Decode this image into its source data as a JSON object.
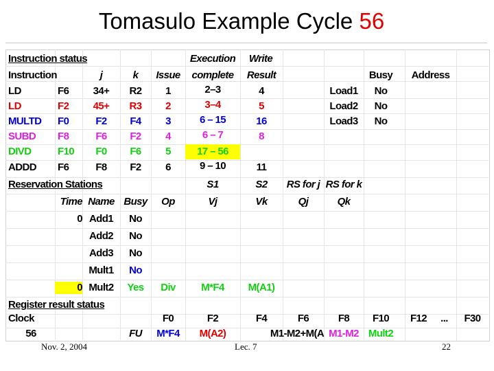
{
  "title": {
    "text": "Tomasulo Example Cycle ",
    "cycle": "56"
  },
  "colors": {
    "black": "#000000",
    "red": "#e00000",
    "blue": "#0000e0",
    "magenta": "#e020e0",
    "green": "#10d010",
    "highlight": "#ffff00"
  },
  "instr": {
    "section_label": "Instruction status",
    "headers": {
      "instruction": "Instruction",
      "j": "j",
      "k": "k",
      "issue": "Issue",
      "exec1": "Execution",
      "exec2": "complete",
      "write1": "Write",
      "write2": "Result"
    },
    "rows": [
      {
        "op": "LD",
        "dest": "F6",
        "j": "34+",
        "k": "R2",
        "issue": "1",
        "exec": "2–3",
        "write": "4",
        "color": "#000000"
      },
      {
        "op": "LD",
        "dest": "F2",
        "j": "45+",
        "k": "R3",
        "issue": "2",
        "exec": "3–4",
        "write": "5",
        "color": "#e00000"
      },
      {
        "op": "MULTD",
        "dest": "F0",
        "j": "F2",
        "k": "F4",
        "issue": "3",
        "exec": "6 – 15",
        "write": "16",
        "color": "#0000e0"
      },
      {
        "op": "SUBD",
        "dest": "F8",
        "j": "F6",
        "k": "F2",
        "issue": "4",
        "exec": "6 – 7",
        "write": "8",
        "color": "#e020e0"
      },
      {
        "op": "DIVD",
        "dest": "F10",
        "j": "F0",
        "k": "F6",
        "issue": "5",
        "exec": "17 – 56",
        "write": "",
        "color": "#10d010"
      },
      {
        "op": "ADDD",
        "dest": "F6",
        "j": "F8",
        "k": "F2",
        "issue": "6",
        "exec": "9 – 10",
        "write": "11",
        "color": "#000000"
      }
    ]
  },
  "load": {
    "headers": {
      "busy": "Busy",
      "address": "Address"
    },
    "rows": [
      {
        "name": "Load1",
        "busy": "No",
        "address": ""
      },
      {
        "name": "Load2",
        "busy": "No",
        "address": ""
      },
      {
        "name": "Load3",
        "busy": "No",
        "address": ""
      }
    ]
  },
  "rs": {
    "section_label": "Reservation Stations",
    "headers": {
      "s1": "S1",
      "s2": "S2",
      "rs_j": "RS for j",
      "rs_k": "RS for k",
      "time": "Time",
      "name": "Name",
      "busy": "Busy",
      "op": "Op",
      "vj": "Vj",
      "vk": "Vk",
      "qj": "Qj",
      "qk": "Qk"
    },
    "rows": [
      {
        "time": "0",
        "name": "Add1",
        "busy": "No",
        "op": "",
        "vj": "",
        "vk": "",
        "qj": "",
        "qk": "",
        "color": "#000000"
      },
      {
        "time": "",
        "name": "Add2",
        "busy": "No",
        "op": "",
        "vj": "",
        "vk": "",
        "qj": "",
        "qk": "",
        "color": "#000000"
      },
      {
        "time": "",
        "name": "Add3",
        "busy": "No",
        "op": "",
        "vj": "",
        "vk": "",
        "qj": "",
        "qk": "",
        "color": "#000000"
      },
      {
        "time": "",
        "name": "Mult1",
        "busy": "No",
        "op": "",
        "vj": "",
        "vk": "",
        "qj": "",
        "qk": "",
        "color": "#0000e0"
      },
      {
        "time": "0",
        "name": "Mult2",
        "busy": "Yes",
        "op": "Div",
        "vj": "M*F4",
        "vk": "M(A1)",
        "qj": "",
        "qk": "",
        "color": "#10d010"
      }
    ]
  },
  "reg": {
    "section_label": "Register result status",
    "clock_label": "Clock",
    "clock_value": "56",
    "fu_label": "FU",
    "registers": [
      {
        "name": "F0",
        "fu": "M*F4",
        "color": "#0000e0"
      },
      {
        "name": "F2",
        "fu": "M(A2)",
        "color": "#e00000"
      },
      {
        "name": "F4",
        "fu": "",
        "color": "#000000"
      },
      {
        "name": "F6",
        "fu": "M1-M2+M(A",
        "color": "#000000"
      },
      {
        "name": "F8",
        "fu": "M1-M2",
        "color": "#e020e0"
      },
      {
        "name": "F10",
        "fu": "Mult2",
        "color": "#10d010"
      },
      {
        "name": "F12",
        "fu": "",
        "color": "#000000"
      },
      {
        "name": "...",
        "fu": "",
        "color": "#000000"
      },
      {
        "name": "F30",
        "fu": "",
        "color": "#000000"
      }
    ]
  },
  "footer": {
    "date": "Nov. 2, 2004",
    "lecture": "Lec. 7",
    "page": "22"
  }
}
